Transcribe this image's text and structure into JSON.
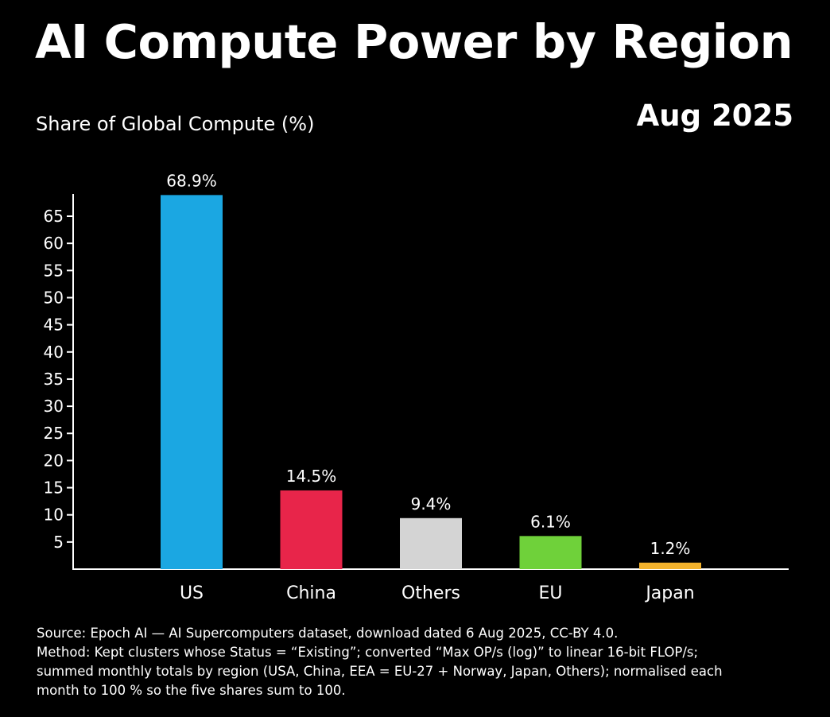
{
  "title": "AI Compute Power by Region",
  "subtitle": "Share of Global Compute (%)",
  "date": "Aug 2025",
  "chart_data": {
    "type": "bar",
    "title": "AI Compute Power by Region",
    "ylabel": "Share of Global Compute (%)",
    "xlabel": "",
    "categories": [
      "US",
      "China",
      "Others",
      "EU",
      "Japan"
    ],
    "values": [
      68.9,
      14.5,
      9.4,
      6.1,
      1.2
    ],
    "value_labels": [
      "68.9%",
      "14.5%",
      "9.4%",
      "6.1%",
      "1.2%"
    ],
    "colors": [
      "#1ba7e2",
      "#e8254a",
      "#d4d4d4",
      "#6fd13a",
      "#f2b22c"
    ],
    "yticks": [
      5,
      10,
      15,
      20,
      25,
      30,
      35,
      40,
      45,
      50,
      55,
      60,
      65
    ],
    "ylim": [
      0,
      70
    ],
    "grid": false
  },
  "notes": {
    "source": "Source: Epoch AI — AI Supercomputers dataset, download dated 6 Aug 2025, CC-BY 4.0.",
    "method_line1": "Method: Kept clusters whose Status = “Existing”; converted “Max OP/s (log)” to linear 16-bit FLOP/s;",
    "method_line2": "summed monthly totals by region (USA, China, EEA = EU-27 + Norway, Japan, Others); normalised each",
    "method_line3": "month to 100 % so the five shares sum to 100."
  }
}
